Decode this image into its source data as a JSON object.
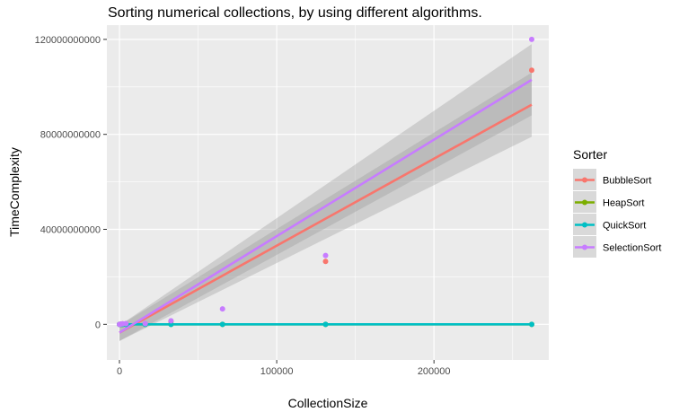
{
  "chart_data": {
    "type": "scatter",
    "title": "Sorting numerical collections, by using different algorithms.",
    "xlabel": "CollectionSize",
    "ylabel": "TimeComplexity",
    "xlim": [
      -8000,
      273000
    ],
    "ylim": [
      -15000000000,
      126000000000
    ],
    "x_ticks": [
      0,
      100000,
      200000
    ],
    "x_tick_labels": [
      "0",
      "100000",
      "200000"
    ],
    "y_ticks": [
      0,
      40000000000,
      80000000000,
      120000000000
    ],
    "y_tick_labels": [
      "0",
      "40000000000",
      "80000000000",
      "120000000000"
    ],
    "grid": true,
    "legend": {
      "title": "Sorter",
      "position": "right"
    },
    "series": [
      {
        "name": "BubbleSort",
        "color": "#F8766D",
        "points": [
          [
            0,
            0
          ],
          [
            1024,
            100000000
          ],
          [
            2048,
            200000000
          ],
          [
            4096,
            250000000
          ],
          [
            16384,
            200000000
          ],
          [
            32768,
            1200000000
          ],
          [
            131072,
            26500000000
          ],
          [
            262144,
            107000000000
          ]
        ],
        "fit": {
          "x_start": 0,
          "y_start": -3500000000,
          "x_end": 262144,
          "y_end": 92500000000
        },
        "band": {
          "lower_start": -7000000000,
          "upper_start": -500000000,
          "lower_end": 79000000000,
          "upper_end": 106000000000
        }
      },
      {
        "name": "HeapSort",
        "color": "#7CAE00",
        "points": [
          [
            0,
            0
          ],
          [
            1024,
            0
          ],
          [
            2048,
            0
          ],
          [
            4096,
            0
          ],
          [
            16384,
            0
          ],
          [
            32768,
            0
          ],
          [
            65536,
            0
          ],
          [
            131072,
            0
          ],
          [
            262144,
            0
          ]
        ],
        "fit": {
          "x_start": 0,
          "y_start": 0,
          "x_end": 262144,
          "y_end": 0
        }
      },
      {
        "name": "QuickSort",
        "color": "#00BFC4",
        "points": [
          [
            0,
            0
          ],
          [
            1024,
            0
          ],
          [
            2048,
            0
          ],
          [
            4096,
            0
          ],
          [
            16384,
            0
          ],
          [
            32768,
            0
          ],
          [
            65536,
            0
          ],
          [
            131072,
            0
          ],
          [
            262144,
            0
          ]
        ],
        "fit": {
          "x_start": 0,
          "y_start": 0,
          "x_end": 262144,
          "y_end": 0
        }
      },
      {
        "name": "SelectionSort",
        "color": "#C77CFF",
        "points": [
          [
            0,
            0
          ],
          [
            1024,
            100000000
          ],
          [
            2048,
            200000000
          ],
          [
            4096,
            300000000
          ],
          [
            16384,
            300000000
          ],
          [
            32768,
            1500000000
          ],
          [
            65536,
            6500000000
          ],
          [
            131072,
            29000000000
          ],
          [
            262144,
            120000000000
          ]
        ],
        "fit": {
          "x_start": 0,
          "y_start": -3500000000,
          "x_end": 262144,
          "y_end": 103000000000
        },
        "band": {
          "lower_start": -7000000000,
          "upper_start": -500000000,
          "lower_end": 88000000000,
          "upper_end": 118000000000
        }
      }
    ]
  }
}
